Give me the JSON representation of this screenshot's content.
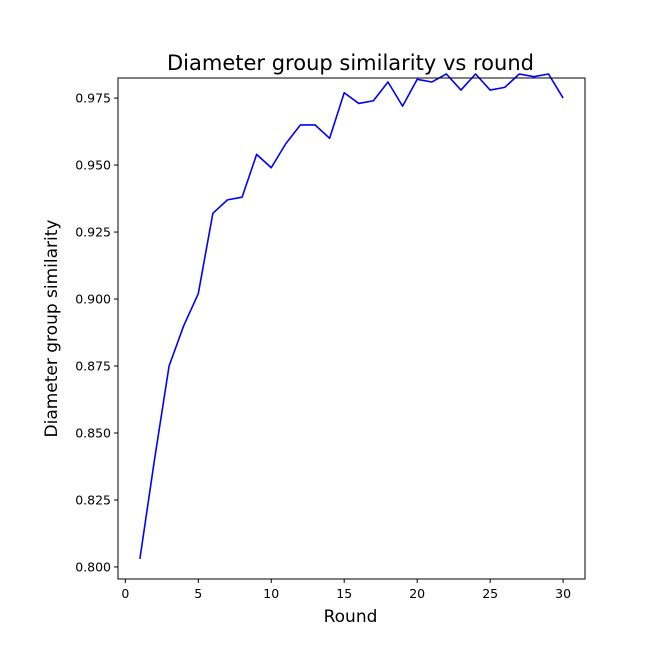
{
  "chart_data": {
    "type": "line",
    "title": "Diameter group similarity vs round",
    "xlabel": "Round",
    "ylabel": "Diameter group similarity",
    "xlim": [
      -0.5,
      31.5
    ],
    "ylim": [
      0.7955,
      0.9825
    ],
    "xticks": [
      0,
      5,
      10,
      15,
      20,
      25,
      30
    ],
    "yticks": [
      0.8,
      0.825,
      0.85,
      0.875,
      0.9,
      0.925,
      0.95,
      0.975
    ],
    "xtick_labels": [
      "0",
      "5",
      "10",
      "15",
      "20",
      "25",
      "30"
    ],
    "ytick_labels": [
      "0.800",
      "0.825",
      "0.850",
      "0.875",
      "0.900",
      "0.925",
      "0.950",
      "0.975"
    ],
    "grid": false,
    "line_color": "#0000ff",
    "series": [
      {
        "x": [
          1,
          2,
          3,
          4,
          5,
          6,
          7,
          8,
          9,
          10,
          11,
          12,
          13,
          14,
          15,
          16,
          17,
          18,
          19,
          20,
          21,
          22,
          23,
          24,
          25,
          26,
          27,
          28,
          29,
          30
        ],
        "values": [
          0.803,
          0.84,
          0.875,
          0.89,
          0.902,
          0.932,
          0.937,
          0.938,
          0.954,
          0.949,
          0.958,
          0.965,
          0.965,
          0.96,
          0.977,
          0.973,
          0.974,
          0.981,
          0.972,
          0.982,
          0.981,
          0.984,
          0.978,
          0.984,
          0.978,
          0.979,
          0.984,
          0.983,
          0.984,
          0.975
        ]
      }
    ]
  }
}
